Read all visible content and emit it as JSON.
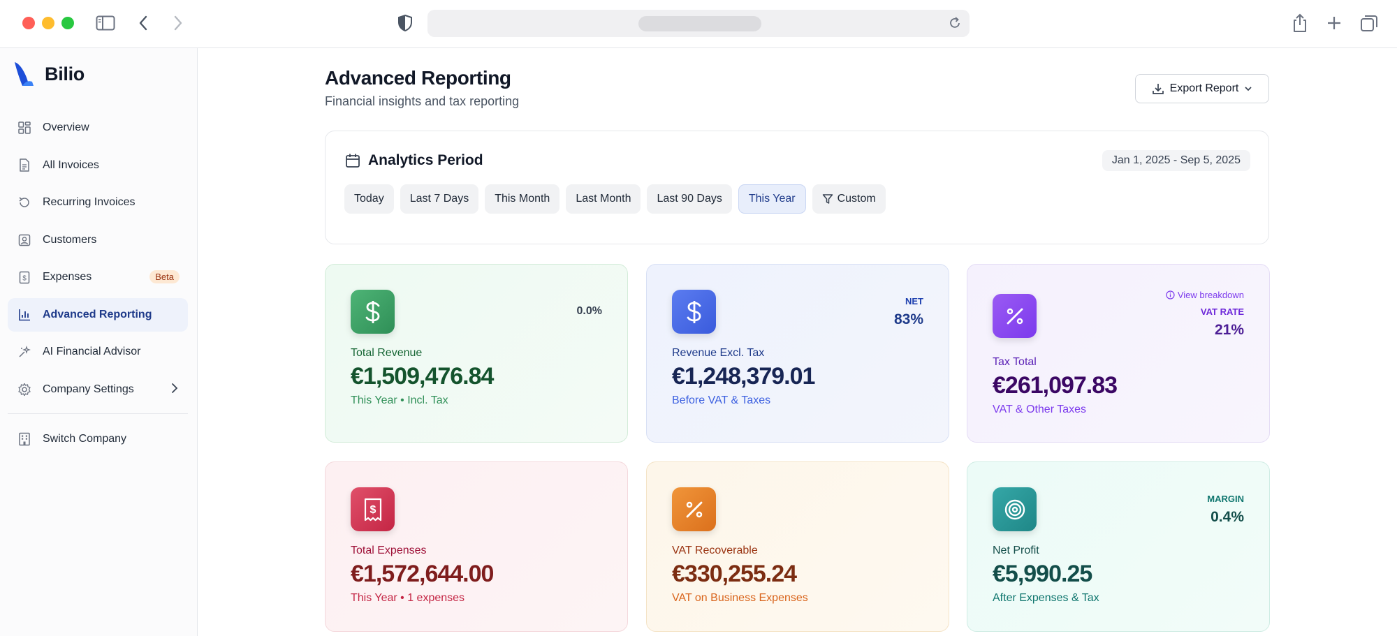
{
  "browser": {
    "icons": [
      "sidebar-toggle-icon",
      "back-icon",
      "forward-icon",
      "shield-icon",
      "reload-icon",
      "share-icon",
      "new-tab-icon",
      "tabs-overview-icon"
    ]
  },
  "sidebar": {
    "brand": "Bilio",
    "items": [
      {
        "label": "Overview",
        "icon": "grid-icon"
      },
      {
        "label": "All Invoices",
        "icon": "document-icon"
      },
      {
        "label": "Recurring Invoices",
        "icon": "refresh-icon"
      },
      {
        "label": "Customers",
        "icon": "user-square-icon"
      },
      {
        "label": "Expenses",
        "icon": "receipt-icon",
        "badge": "Beta"
      },
      {
        "label": "Advanced Reporting",
        "icon": "bar-chart-icon",
        "active": true
      },
      {
        "label": "AI Financial Advisor",
        "icon": "sparkle-icon"
      },
      {
        "label": "Company Settings",
        "icon": "gear-icon"
      }
    ],
    "switch_company": "Switch Company"
  },
  "header": {
    "title": "Advanced Reporting",
    "subtitle": "Financial insights and tax reporting",
    "export_label": "Export Report"
  },
  "period": {
    "title": "Analytics Period",
    "date_range": "Jan 1, 2025 - Sep 5, 2025",
    "chips": [
      "Today",
      "Last 7 Days",
      "This Month",
      "Last Month",
      "Last 90 Days",
      "This Year",
      "Custom"
    ],
    "active_chip": "This Year"
  },
  "cards": {
    "revenue": {
      "label": "Total Revenue",
      "value": "€1,509,476.84",
      "sub": "This Year • Incl. Tax",
      "change": "0.0%"
    },
    "revenue_excl": {
      "label": "Revenue Excl. Tax",
      "value": "€1,248,379.01",
      "sub": "Before VAT & Taxes",
      "tag": "NET",
      "tag_value": "83%"
    },
    "tax": {
      "label": "Tax Total",
      "value": "€261,097.83",
      "sub": "VAT & Other Taxes",
      "link": "View breakdown",
      "tag": "VAT RATE",
      "tag_value": "21%"
    },
    "expenses": {
      "label": "Total Expenses",
      "value": "€1,572,644.00",
      "sub": "This Year • 1 expenses"
    },
    "vat_recoverable": {
      "label": "VAT Recoverable",
      "value": "€330,255.24",
      "sub": "VAT on Business Expenses"
    },
    "net_profit": {
      "label": "Net Profit",
      "value": "€5,990.25",
      "sub": "After Expenses & Tax",
      "tag": "MARGIN",
      "tag_value": "0.4%"
    }
  },
  "colors": {
    "accent": "#1e3a8a",
    "green": "#2e8b57",
    "blue": "#3b5fe0",
    "purple": "#7c3aed",
    "red": "#d6334f",
    "orange": "#e07b24",
    "teal": "#1f8d8d"
  }
}
